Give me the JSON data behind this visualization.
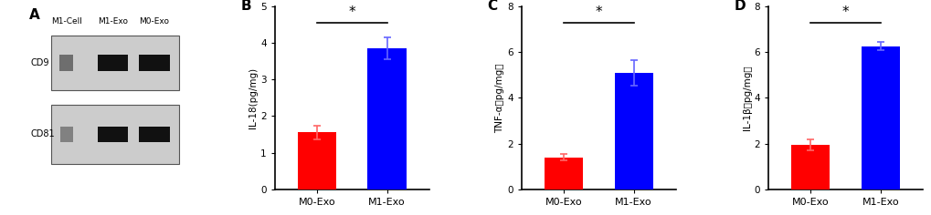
{
  "panel_B": {
    "label": "B",
    "ylabel": "IL-18(pg/mg)",
    "categories": [
      "M0-Exo",
      "M1-Exo"
    ],
    "values": [
      1.55,
      3.85
    ],
    "errors": [
      0.18,
      0.3
    ],
    "colors": [
      "#FF0000",
      "#0000FF"
    ],
    "ecolors": [
      "#FF6666",
      "#6666FF"
    ],
    "ylim": [
      0,
      5
    ],
    "yticks": [
      0,
      1,
      2,
      3,
      4,
      5
    ]
  },
  "panel_C": {
    "label": "C",
    "ylabel": "TNF-α（pg/mg）",
    "categories": [
      "M0-Exo",
      "M1-Exo"
    ],
    "values": [
      1.4,
      5.1
    ],
    "errors": [
      0.15,
      0.55
    ],
    "colors": [
      "#FF0000",
      "#0000FF"
    ],
    "ecolors": [
      "#FF6666",
      "#6666FF"
    ],
    "ylim": [
      0,
      8
    ],
    "yticks": [
      0,
      2,
      4,
      6,
      8
    ]
  },
  "panel_D": {
    "label": "D",
    "ylabel": "IL-1β（pg/mg）",
    "categories": [
      "M0-Exo",
      "M1-Exo"
    ],
    "values": [
      1.95,
      6.25
    ],
    "errors": [
      0.25,
      0.18
    ],
    "colors": [
      "#FF0000",
      "#0000FF"
    ],
    "ecolors": [
      "#FF6666",
      "#6666FF"
    ],
    "ylim": [
      0,
      8
    ],
    "yticks": [
      0,
      2,
      4,
      6,
      8
    ]
  },
  "panel_A": {
    "label": "A",
    "col_labels": [
      "M1-Cell",
      "M1-Exo",
      "M0-Exo"
    ],
    "row_labels": [
      "CD9",
      "CD81"
    ]
  },
  "sig_line_color": "#000000",
  "sig_star_color": "#000000",
  "bar_width": 0.55
}
